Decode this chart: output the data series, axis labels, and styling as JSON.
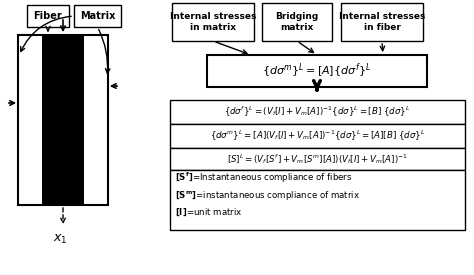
{
  "bg_color": "#ffffff",
  "fig_width": 4.74,
  "fig_height": 2.75,
  "dpi": 100,
  "fiber_label": "Fiber",
  "matrix_label": "Matrix",
  "box1_label": "Internal stresses\nin matrix",
  "box2_label": "Bridging\nmatrix",
  "box3_label": "Internal stresses\nin fiber",
  "x1_label": "$x_1$"
}
